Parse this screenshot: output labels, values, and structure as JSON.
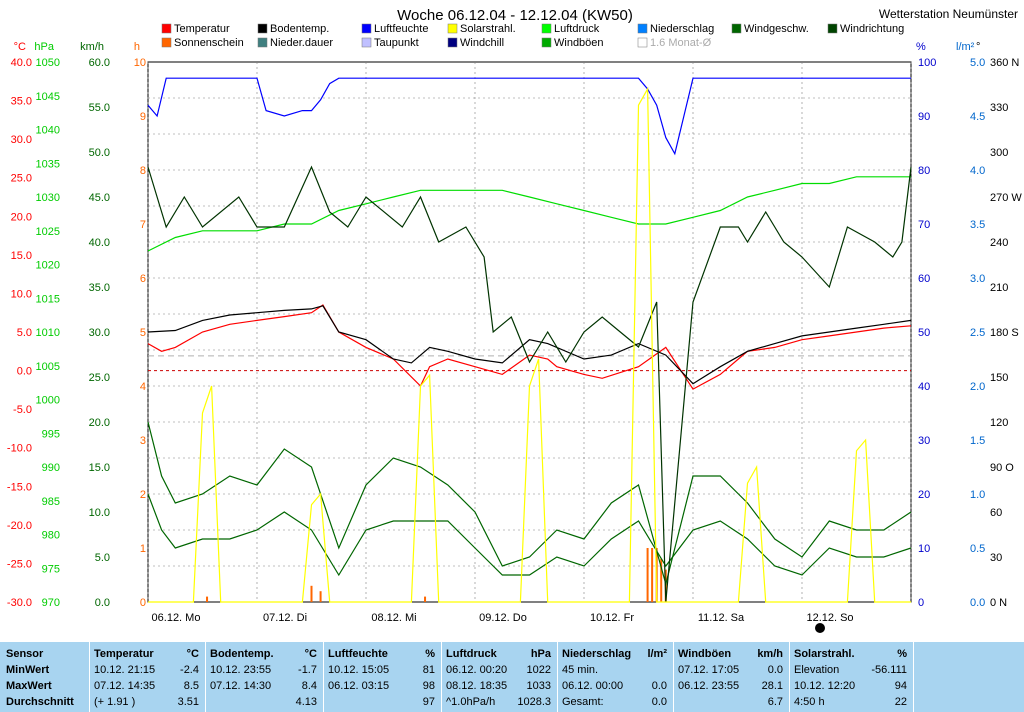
{
  "station": "Wetterstation Neumünster",
  "title": "Woche 06.12.04 - 12.12.04 (KW50)",
  "colors": {
    "temperature": "#ff0000",
    "dewpoint_line": "#000080",
    "soil": "#000000",
    "humidity": "#0000ff",
    "pressure": "#00dd00",
    "wind": "#006600",
    "direction": "#003300",
    "solar": "#ffff00",
    "sunshine": "#ff6600",
    "precip": "#006600"
  },
  "legend": [
    {
      "label": "Temperatur",
      "color": "#ff0000"
    },
    {
      "label": "Bodentemp.",
      "color": "#000000"
    },
    {
      "label": "Luftfeuchte",
      "color": "#0000ff"
    },
    {
      "label": "Solarstrahl.",
      "color": "#ffff00"
    },
    {
      "label": "Luftdruck",
      "color": "#00ff00"
    },
    {
      "label": "Niederschlag",
      "color": "#0080ff"
    },
    {
      "label": "Windgeschw.",
      "color": "#006600"
    },
    {
      "label": "Windrichtung",
      "color": "#004400"
    },
    {
      "label": "Sonnenschein",
      "color": "#ff6600"
    },
    {
      "label": "Nieder.dauer",
      "color": "#408080"
    },
    {
      "label": "Taupunkt",
      "color": "#c0c0ff"
    },
    {
      "label": "Windchill",
      "color": "#000080"
    },
    {
      "label": "Windböen",
      "color": "#00aa00"
    },
    {
      "label": "1.6 Monat-Ø",
      "color": "#ffffff"
    }
  ],
  "axes_left": [
    {
      "unit": "°C",
      "color": "#ff0000",
      "ticks": [
        "40.0",
        "35.0",
        "30.0",
        "25.0",
        "20.0",
        "15.0",
        "10.0",
        "5.0",
        "0.0",
        "-5.0",
        "-10.0",
        "-15.0",
        "-20.0",
        "-25.0",
        "-30.0"
      ]
    },
    {
      "unit": "hPa",
      "color": "#00cc00",
      "ticks": [
        "1050",
        "1045",
        "1040",
        "1035",
        "1030",
        "1025",
        "1020",
        "1015",
        "1010",
        "1005",
        "1000",
        "995",
        "990",
        "985",
        "980",
        "975",
        "970"
      ]
    },
    {
      "unit": "km/h",
      "color": "#006600",
      "ticks": [
        "60.0",
        "55.0",
        "50.0",
        "45.0",
        "40.0",
        "35.0",
        "30.0",
        "25.0",
        "20.0",
        "15.0",
        "10.0",
        "5.0",
        "0.0"
      ]
    },
    {
      "unit": "h",
      "color": "#ff6600",
      "ticks": [
        "10",
        "9",
        "8",
        "7",
        "6",
        "5",
        "4",
        "3",
        "2",
        "1",
        "0"
      ]
    }
  ],
  "axes_right": [
    {
      "unit": "%",
      "color": "#0000cc",
      "ticks": [
        "100",
        "90",
        "80",
        "70",
        "60",
        "50",
        "40",
        "30",
        "20",
        "10",
        "0"
      ]
    },
    {
      "unit": "l/m²",
      "color": "#0066cc",
      "ticks": [
        "5.0",
        "4.5",
        "4.0",
        "3.5",
        "3.0",
        "2.5",
        "2.0",
        "1.5",
        "1.0",
        "0.5",
        "0.0"
      ]
    },
    {
      "unit": "°",
      "color": "#000000",
      "ticks": [
        "360 N",
        "330",
        "300",
        "270 W",
        "240",
        "210",
        "180 S",
        "150",
        "120",
        "90 O",
        "60",
        "30",
        "0 N"
      ]
    }
  ],
  "x_labels": [
    "06.12. Mo",
    "07.12. Di",
    "08.12. Mi",
    "09.12. Do",
    "10.12. Fr",
    "11.12. Sa",
    "12.12. So"
  ],
  "chart_data": {
    "type": "line",
    "x_unit": "hours since 06.12.04 00:00",
    "x_range": [
      0,
      168
    ],
    "series": [
      {
        "name": "Temperatur",
        "axis": "°C",
        "x": [
          0,
          3,
          6,
          12,
          18,
          24,
          30,
          36,
          38.5,
          42,
          48,
          54,
          60,
          62,
          66,
          72,
          78,
          84,
          88,
          90,
          96,
          100,
          108,
          114,
          120,
          126,
          130,
          132,
          138,
          144,
          150,
          156,
          162,
          168
        ],
        "y": [
          3.5,
          2.5,
          3.0,
          5.0,
          6.0,
          6.5,
          7.0,
          7.5,
          8.5,
          5.0,
          3.0,
          1.5,
          -2.0,
          0.5,
          1.5,
          0.5,
          -0.5,
          2.0,
          1.5,
          0.5,
          -0.5,
          -1.0,
          0.5,
          3.0,
          -2.4,
          -0.5,
          1.5,
          2.5,
          3.0,
          4.0,
          4.5,
          5.0,
          5.5,
          5.8
        ]
      },
      {
        "name": "Bodentemp.",
        "axis": "°C",
        "x": [
          0,
          6,
          12,
          18,
          24,
          30,
          36,
          38.5,
          42,
          48,
          54,
          58,
          62,
          66,
          72,
          78,
          84,
          88,
          96,
          102,
          108,
          114,
          120,
          126,
          132,
          138,
          144,
          150,
          156,
          162,
          168
        ],
        "y": [
          5.0,
          5.2,
          6.5,
          7.2,
          7.5,
          7.8,
          8.0,
          8.4,
          5.0,
          4.0,
          1.5,
          1.0,
          3.0,
          2.5,
          1.5,
          1.0,
          4.0,
          3.5,
          1.5,
          2.0,
          3.5,
          2.0,
          -1.7,
          0.5,
          2.5,
          3.5,
          4.5,
          5.0,
          5.5,
          6.0,
          6.5
        ]
      },
      {
        "name": "Luftfeuchte",
        "axis": "%",
        "x": [
          0,
          2,
          4,
          24,
          26,
          30,
          34,
          36,
          38,
          40,
          42,
          48,
          60,
          72,
          84,
          96,
          108,
          110,
          112,
          114,
          116,
          118,
          120,
          126,
          144,
          168
        ],
        "y": [
          92,
          90,
          97,
          97,
          91,
          90,
          91,
          91,
          93,
          96,
          97,
          97,
          97,
          97,
          97,
          97,
          97,
          95,
          92,
          86,
          83,
          90,
          97,
          97,
          97,
          97
        ]
      },
      {
        "name": "Luftdruck",
        "axis": "hPa",
        "x": [
          0,
          6,
          12,
          24,
          30,
          36,
          42,
          48,
          54,
          60,
          66,
          72,
          78,
          84,
          90,
          96,
          102,
          108,
          114,
          120,
          126,
          132,
          138,
          144,
          150,
          156,
          162,
          168
        ],
        "y": [
          1022,
          1024,
          1025,
          1025,
          1026,
          1026,
          1028,
          1029,
          1030,
          1031,
          1031,
          1031,
          1031,
          1030,
          1029,
          1028,
          1027,
          1026,
          1026,
          1027,
          1028,
          1030,
          1031,
          1032,
          1032,
          1033,
          1033,
          1033
        ]
      },
      {
        "name": "Windgeschw.",
        "axis": "km/h",
        "x": [
          0,
          3,
          6,
          12,
          18,
          24,
          30,
          36,
          42,
          48,
          54,
          60,
          66,
          72,
          78,
          84,
          90,
          96,
          102,
          108,
          114,
          120,
          126,
          132,
          138,
          144,
          150,
          156,
          162,
          168
        ],
        "y": [
          12,
          8,
          6,
          7,
          7,
          8,
          10,
          8,
          3,
          8,
          9,
          9,
          9,
          6,
          3,
          3,
          5,
          4,
          7,
          9,
          4,
          8,
          9,
          7,
          4,
          3,
          6,
          5,
          5,
          6
        ]
      },
      {
        "name": "Windböen",
        "axis": "km/h",
        "x": [
          0,
          3,
          6,
          12,
          18,
          24,
          30,
          36,
          42,
          48,
          54,
          60,
          66,
          72,
          78,
          84,
          90,
          96,
          102,
          108,
          114,
          120,
          126,
          132,
          138,
          144,
          150,
          156,
          162,
          168
        ],
        "y": [
          20,
          14,
          11,
          12,
          14,
          13,
          17,
          15,
          6,
          13,
          16,
          15,
          13,
          10,
          4,
          5,
          8,
          7,
          11,
          13,
          2,
          14,
          14,
          11,
          7,
          5,
          9,
          8,
          8,
          10
        ]
      },
      {
        "name": "Windrichtung",
        "axis": "°",
        "x": [
          0,
          4,
          8,
          12,
          20,
          24,
          30,
          36,
          40,
          44,
          48,
          56,
          60,
          64,
          70,
          74,
          76,
          80,
          84,
          88,
          92,
          96,
          100,
          104,
          108,
          112,
          114,
          120,
          126,
          130,
          132,
          136,
          140,
          144,
          150,
          154,
          160,
          164,
          166,
          168
        ],
        "y": [
          290,
          250,
          270,
          250,
          270,
          250,
          250,
          290,
          260,
          250,
          270,
          250,
          270,
          240,
          250,
          230,
          180,
          190,
          160,
          180,
          160,
          180,
          190,
          180,
          170,
          200,
          0,
          200,
          250,
          250,
          240,
          260,
          240,
          230,
          210,
          250,
          240,
          230,
          240,
          290
        ]
      },
      {
        "name": "Solarstrahl.",
        "axis": "%",
        "x": [
          0,
          10,
          12,
          14,
          16,
          24,
          34,
          36,
          38,
          40,
          48,
          58,
          60,
          62,
          64,
          72,
          82,
          84,
          86,
          88,
          96,
          106,
          108,
          110,
          112,
          120,
          130,
          132,
          134,
          136,
          144,
          154,
          156,
          158,
          160,
          168
        ],
        "y": [
          0,
          0,
          35,
          40,
          0,
          0,
          0,
          18,
          20,
          0,
          0,
          0,
          40,
          42,
          0,
          0,
          0,
          40,
          45,
          0,
          0,
          0,
          92,
          95,
          0,
          0,
          0,
          22,
          25,
          0,
          0,
          0,
          28,
          30,
          0,
          0
        ]
      }
    ],
    "bars": [
      {
        "name": "Sonnenschein",
        "x": [
          13,
          36,
          38,
          61,
          110,
          111,
          112,
          113,
          114
        ],
        "y": [
          0.1,
          0.3,
          0.2,
          0.1,
          1.0,
          1.0,
          1.0,
          0.8,
          0.6
        ]
      }
    ]
  },
  "stats": {
    "sensor": {
      "header": "Sensor",
      "rows": [
        "MinWert",
        "MaxWert",
        "Durchschnitt"
      ]
    },
    "columns": [
      {
        "name": "Temperatur",
        "unit": "°C",
        "rows": [
          [
            "10.12.  21:15",
            "-2.4"
          ],
          [
            "07.12.  14:35",
            "8.5"
          ],
          [
            "(+ 1.91 )",
            "3.51"
          ]
        ]
      },
      {
        "name": "Bodentemp.",
        "unit": "°C",
        "rows": [
          [
            "10.12.  23:55",
            "-1.7"
          ],
          [
            "07.12.  14:30",
            "8.4"
          ],
          [
            "",
            "4.13"
          ]
        ]
      },
      {
        "name": "Luftfeuchte",
        "unit": "%",
        "rows": [
          [
            "10.12.  15:05",
            "81"
          ],
          [
            "06.12.  03:15",
            "98"
          ],
          [
            "",
            "97"
          ]
        ]
      },
      {
        "name": "Luftdruck",
        "unit": "hPa",
        "rows": [
          [
            "06.12.  00:20",
            "1022"
          ],
          [
            "08.12.  18:35",
            "1033"
          ],
          [
            "^1.0hPa/h",
            "1028.3"
          ]
        ]
      },
      {
        "name": "Niederschlag",
        "unit": "l/m²",
        "rows": [
          [
            "45 min.",
            ""
          ],
          [
            "06.12.  00:00",
            "0.0"
          ],
          [
            "Gesamt:",
            "0.0"
          ]
        ]
      },
      {
        "name": "Windböen",
        "unit": "km/h",
        "rows": [
          [
            "07.12.  17:05",
            "0.0"
          ],
          [
            "06.12.  23:55",
            "28.1"
          ],
          [
            "",
            "6.7"
          ]
        ]
      },
      {
        "name": "Solarstrahl.",
        "unit": "%",
        "rows": [
          [
            "Elevation",
            "-56.111"
          ],
          [
            "10.12.  12:20",
            "94"
          ],
          [
            "4:50 h",
            "22"
          ]
        ]
      }
    ]
  }
}
